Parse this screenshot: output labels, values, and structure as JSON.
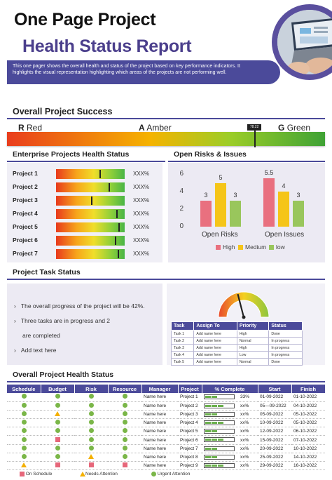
{
  "header": {
    "title_line1": "One Page Project",
    "title_line2": "Health Status Report",
    "description": "This one pager shows the overall health and status of the project based on key performance indicators. It highlights the visual representation highlighting which areas of the projects are not performing well."
  },
  "overall_success": {
    "title": "Overall Project Success",
    "red_letter": "R",
    "red_label": "Red",
    "amber_letter": "A",
    "amber_label": "Amber",
    "green_letter": "G",
    "green_label": "Green",
    "marker_value": "78.22",
    "marker_fraction": 0.78
  },
  "enterprise": {
    "title": "Enterprise Projects  Health Status",
    "projects": [
      {
        "name": "Project 1",
        "value": "XXX%",
        "level": 0.65
      },
      {
        "name": "Project 2",
        "value": "XXX%",
        "level": 0.78
      },
      {
        "name": "Project 3",
        "value": "XXX%",
        "level": 0.52
      },
      {
        "name": "Project 4",
        "value": "XXX%",
        "level": 0.9
      },
      {
        "name": "Project 5",
        "value": "XXX%",
        "level": 0.93
      },
      {
        "name": "Project 6",
        "value": "XXX%",
        "level": 0.88
      },
      {
        "name": "Project 7",
        "value": "XXX%",
        "level": 0.92
      }
    ]
  },
  "risks": {
    "title": "Open Risks  &  Issues"
  },
  "chart_data": {
    "type": "bar",
    "categories": [
      "Open Risks",
      "Open Issues"
    ],
    "series": [
      {
        "name": "High",
        "values": [
          3,
          5.5
        ],
        "color": "#e9707f"
      },
      {
        "name": "Medium",
        "values": [
          5,
          4
        ],
        "color": "#f5c518"
      },
      {
        "name": "low",
        "values": [
          3,
          3
        ],
        "color": "#99c65c"
      }
    ],
    "data_labels": [
      [
        "3",
        "5",
        "3"
      ],
      [
        "5.5",
        "4",
        "3"
      ]
    ],
    "ylim": [
      0,
      6
    ],
    "yticks": [
      "0",
      "2",
      "4",
      "6"
    ],
    "legend": "bottom",
    "grid": false
  },
  "task_status": {
    "title": "Project Task Status",
    "line1": "The  overall  progress  of the project  will be 42%.",
    "line2": "Three tasks are in progress and 2",
    "line3": "are completed",
    "line4": "Add text here",
    "gauge_fraction": 0.42,
    "table": {
      "headers": [
        "Task",
        "Assign To",
        "Priority",
        "Status"
      ],
      "rows": [
        [
          "Task 1",
          "Add name here",
          "High",
          "Done"
        ],
        [
          "Task 2",
          "Add name here",
          "Normal",
          "In progress"
        ],
        [
          "Task 3",
          "Add name here",
          "High",
          "In progress"
        ],
        [
          "Task 4",
          "Add name here",
          "Low",
          "In progress"
        ],
        [
          "Task 5",
          "Add name here",
          "Normal",
          "Done"
        ]
      ]
    }
  },
  "health_table": {
    "title": "Overall Project  Health Status",
    "headers": [
      "Schedule",
      "Budget",
      "Risk",
      "Resource",
      "Manager",
      "Project",
      "% Complete",
      "Start",
      "Finish"
    ],
    "rows": [
      {
        "s": "dot",
        "b": "dot",
        "r": "dot",
        "res": "dot",
        "manager": "Name here",
        "project": "Project 1",
        "pct": "33%",
        "segs": 2,
        "start": "01-09-2022",
        "finish": "01-10-2022"
      },
      {
        "s": "dot",
        "b": "dot",
        "r": "dot",
        "res": "dot",
        "manager": "Name here",
        "project": "Project 2",
        "pct": "xx%",
        "segs": 3,
        "start": "05—09-2022",
        "finish": "04-10-2022"
      },
      {
        "s": "dot",
        "b": "tri",
        "r": "dot",
        "res": "dot",
        "manager": "Name here",
        "project": "Project 3",
        "pct": "xx%",
        "segs": 2,
        "start": "05-09-2022",
        "finish": "05-10-2022"
      },
      {
        "s": "dot",
        "b": "dot",
        "r": "dot",
        "res": "dot",
        "manager": "Name here",
        "project": "Project 4",
        "pct": "xx%",
        "segs": 3,
        "start": "10-09-2022",
        "finish": "05-10-2022"
      },
      {
        "s": "dot",
        "b": "dot",
        "r": "dot",
        "res": "dot",
        "manager": "Name here",
        "project": "Project 5",
        "pct": "xx%",
        "segs": 2,
        "start": "12-09-2022",
        "finish": "06-10-2022"
      },
      {
        "s": "dot",
        "b": "sq",
        "r": "dot",
        "res": "dot",
        "manager": "Name here",
        "project": "Project 6",
        "pct": "xx%",
        "segs": 3,
        "start": "15-09-2022",
        "finish": "07-10-2022"
      },
      {
        "s": "dot",
        "b": "dot",
        "r": "dot",
        "res": "dot",
        "manager": "Name here",
        "project": "Project 7",
        "pct": "xx%",
        "segs": 2,
        "start": "20-09-2022",
        "finish": "10-10-2022"
      },
      {
        "s": "dot",
        "b": "dot",
        "r": "tri",
        "res": "dot",
        "manager": "Name here",
        "project": "Project 8",
        "pct": "xx%",
        "segs": 2,
        "start": "25-09-2022",
        "finish": "14-10-2022"
      },
      {
        "s": "tri",
        "b": "sq",
        "r": "sq",
        "res": "sq",
        "manager": "Name here",
        "project": "Project 9",
        "pct": "xx%",
        "segs": 3,
        "start": "29-09-2022",
        "finish": "16-10-2022"
      }
    ],
    "legend": {
      "on_schedule": "On Schedule",
      "needs_attention": "Needs Attention",
      "urgent_attention": "Urgent Attention"
    }
  }
}
